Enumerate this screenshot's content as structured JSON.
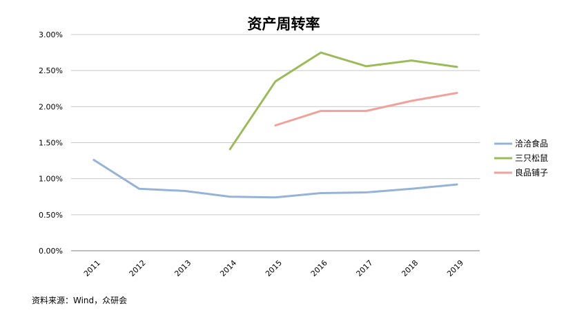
{
  "chart_data": {
    "type": "line",
    "title": "资产周转率",
    "xlabel": "",
    "ylabel": "",
    "categories": [
      "2011",
      "2012",
      "2013",
      "2014",
      "2015",
      "2016",
      "2017",
      "2018",
      "2019"
    ],
    "ylim": [
      0,
      3.0
    ],
    "ytick_values": [
      0,
      0.5,
      1.0,
      1.5,
      2.0,
      2.5,
      3.0
    ],
    "ytick_labels": [
      "0.00%",
      "0.50%",
      "1.00%",
      "1.50%",
      "2.00%",
      "2.50%",
      "3.00%"
    ],
    "grid": true,
    "legend_position": "right",
    "series": [
      {
        "name": "洽洽食品",
        "color": "#95B3D7",
        "values": [
          1.26,
          0.86,
          0.83,
          0.75,
          0.74,
          0.8,
          0.81,
          0.86,
          0.92
        ]
      },
      {
        "name": "三只松鼠",
        "color": "#9BBB59",
        "values": [
          null,
          null,
          null,
          1.41,
          2.35,
          2.75,
          2.56,
          2.64,
          2.55
        ]
      },
      {
        "name": "良品铺子",
        "color": "#F2A19A",
        "values": [
          null,
          null,
          null,
          null,
          1.74,
          1.94,
          1.94,
          2.08,
          2.19
        ]
      }
    ]
  },
  "source_text": "资料来源：Wind，众研会"
}
